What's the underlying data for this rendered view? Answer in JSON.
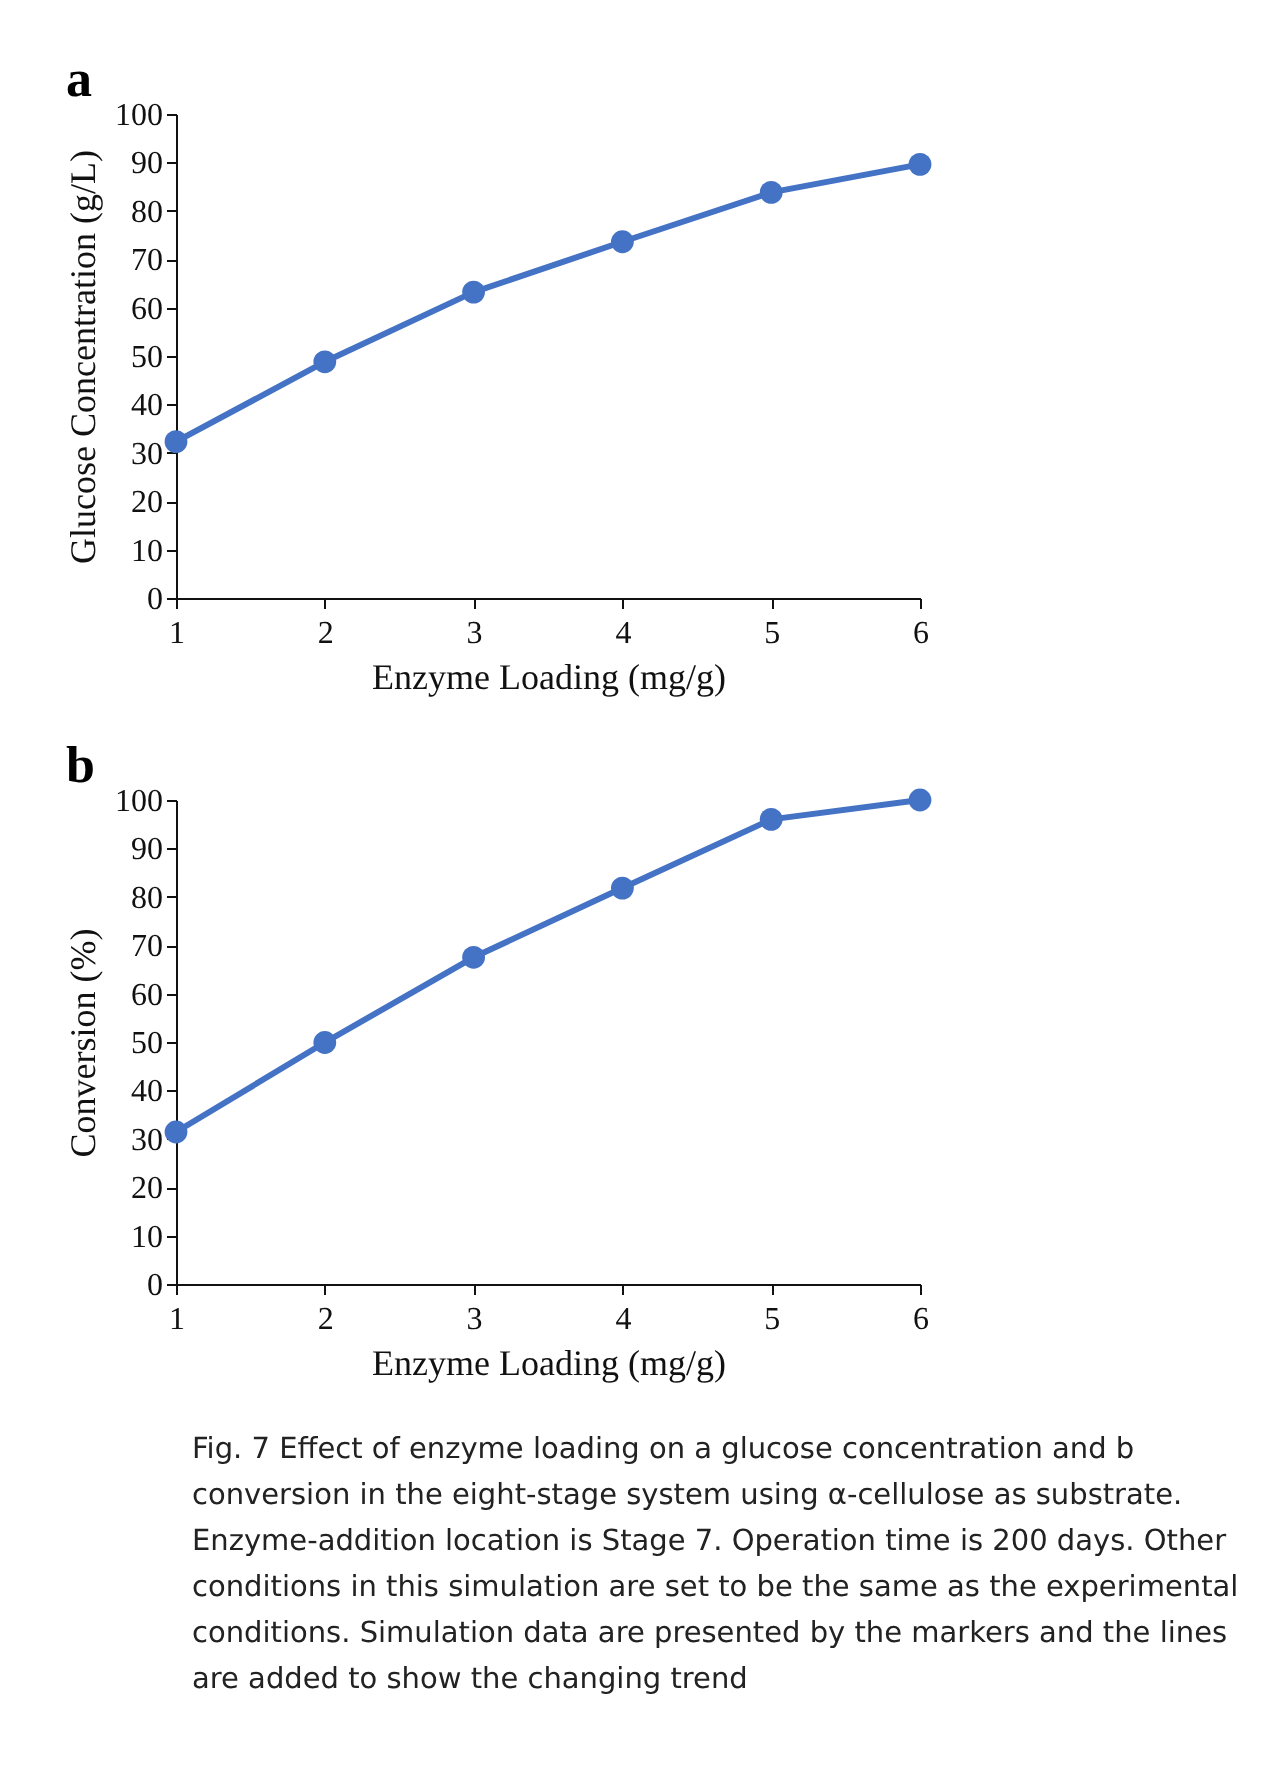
{
  "chart_data": [
    {
      "type": "line",
      "title": "a",
      "xlabel": "Enzyme Loading (mg/g)",
      "ylabel": "Glucose Concentration (g/L)",
      "x": [
        1,
        2,
        3,
        4,
        5,
        6
      ],
      "series": [
        {
          "color": "#4472c4",
          "values": [
            32.3,
            48.8,
            63.2,
            73.6,
            83.8,
            89.6
          ]
        }
      ],
      "xlim": [
        1,
        6
      ],
      "xticks": [
        1,
        2,
        3,
        4,
        5,
        6
      ],
      "ylim": [
        0,
        100
      ],
      "yticks": [
        0,
        10,
        20,
        30,
        40,
        50,
        60,
        70,
        80,
        90,
        100
      ],
      "grid": false,
      "marker": "circle",
      "line_style": "solid"
    },
    {
      "type": "line",
      "title": "b",
      "xlabel": "Enzyme Loading (mg/g)",
      "ylabel": "Conversion (%)",
      "x": [
        1,
        2,
        3,
        4,
        5,
        6
      ],
      "series": [
        {
          "color": "#4472c4",
          "values": [
            31.4,
            49.9,
            67.5,
            81.8,
            96.0,
            100
          ]
        }
      ],
      "xlim": [
        1,
        6
      ],
      "xticks": [
        1,
        2,
        3,
        4,
        5,
        6
      ],
      "ylim": [
        0,
        100
      ],
      "yticks": [
        0,
        10,
        20,
        30,
        40,
        50,
        60,
        70,
        80,
        90,
        100
      ],
      "grid": false,
      "marker": "circle",
      "line_style": "solid",
      "annotations": [
        "Fig. 7  Effect of enzyme loading on a glucose concentration and b conversion in the eight-stage system using α-cellulose as substrate. Enzyme-addition location is Stage 7. Operation time is 200 days. Other conditions in this simulation are set to be the same as the experimental conditions. Simulation data are presented by the markers and the lines are added to show the changing trend"
      ]
    }
  ]
}
